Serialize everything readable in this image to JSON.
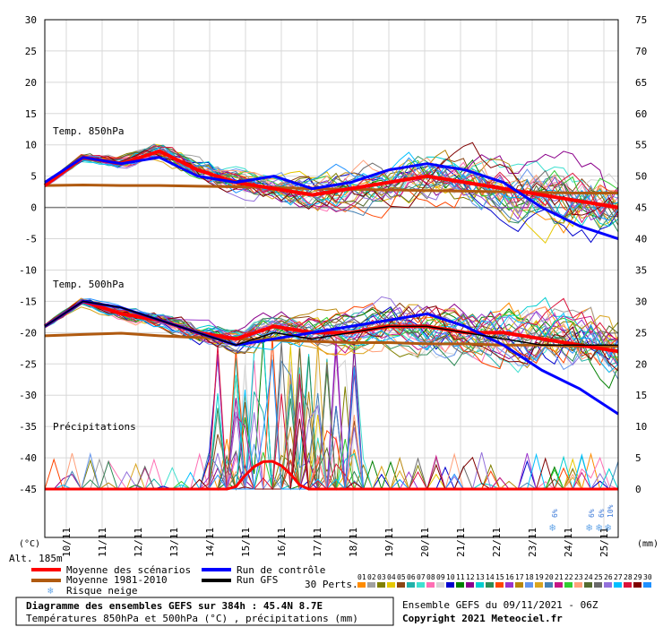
{
  "chart_data": {
    "type": "line",
    "title": "Diagramme des ensembles GEFS sur 384h : 45.4N 8.7E",
    "subtitle": "Températures 850hPa et 500hPa (°C) , précipitations (mm)",
    "left_axis": {
      "unit_label": "(°C)",
      "ticks": [
        "30",
        "25",
        "20",
        "15",
        "10",
        "5",
        "0",
        "-5",
        "-10",
        "-15",
        "-20",
        "-25",
        "-30",
        "-35",
        "-40",
        "-45"
      ]
    },
    "right_axis": {
      "unit_label": "(mm)",
      "ticks": [
        "75",
        "70",
        "65",
        "60",
        "55",
        "50",
        "45",
        "40",
        "35",
        "30",
        "25",
        "20",
        "15",
        "10",
        "5",
        "0"
      ]
    },
    "altitude_label": "Alt. 185m",
    "x_labels": [
      "10/11",
      "11/11",
      "12/11",
      "13/11",
      "14/11",
      "15/11",
      "16/11",
      "17/11",
      "18/11",
      "19/11",
      "20/11",
      "21/11",
      "22/11",
      "23/11",
      "24/11",
      "25/11"
    ],
    "sections": {
      "t850": "Temp. 850hPa",
      "t500": "Temp. 500hPa",
      "precip": "Précipitations"
    },
    "snow_risk_labels": [
      "6%",
      "6%",
      "6%",
      "10%"
    ],
    "legend": {
      "mean": "Moyenne des scénarios",
      "climo": "Moyenne 1981-2010",
      "snow": "Risque neige",
      "control": "Run de contrôle",
      "gfs": "Run GFS",
      "perts_label": "30 Perts."
    },
    "perts": [
      "01",
      "02",
      "03",
      "04",
      "05",
      "06",
      "07",
      "08",
      "09",
      "10",
      "11",
      "12",
      "13",
      "14",
      "15",
      "16",
      "17",
      "18",
      "19",
      "20",
      "21",
      "22",
      "23",
      "24",
      "25",
      "26",
      "27",
      "28",
      "29",
      "30"
    ],
    "pert_colors": [
      "#ff8c00",
      "#a0a0a0",
      "#808000",
      "#e6c800",
      "#8b4513",
      "#20b2aa",
      "#40e0d0",
      "#ff6eb4",
      "#d3d3d3",
      "#0000cd",
      "#008000",
      "#8b008b",
      "#00ced1",
      "#2e8b57",
      "#ff4500",
      "#9932cc",
      "#b8860b",
      "#6495ed",
      "#daa520",
      "#4682b4",
      "#c71585",
      "#32cd32",
      "#ffa07a",
      "#556b2f",
      "#696969",
      "#9370db",
      "#00bfff",
      "#dc143c",
      "#800000",
      "#1e90ff"
    ],
    "series": [
      {
        "name": "Moyenne 1981-2010",
        "level": "t850",
        "values": [
          3.5,
          3.6,
          3.5,
          3.5,
          3.4,
          3.3,
          3.2,
          3.0,
          2.9,
          2.8,
          2.7,
          2.6,
          2.5,
          2.4,
          2.3,
          2.3
        ]
      },
      {
        "name": "Moyenne des scénarios",
        "level": "t850",
        "values": [
          3.5,
          8,
          7,
          9,
          6,
          4,
          3,
          2,
          3,
          4,
          5,
          4,
          3,
          2,
          1,
          0
        ]
      },
      {
        "name": "Run de contrôle",
        "level": "t850",
        "values": [
          4,
          8,
          7,
          8,
          5,
          4,
          5,
          3,
          4,
          6,
          7,
          6,
          4,
          0,
          -3,
          -5
        ]
      },
      {
        "name": "Moyenne 1981-2010",
        "level": "t500",
        "values": [
          -20.5,
          -20.3,
          -20.1,
          -20.5,
          -20.8,
          -21,
          -21.2,
          -21.4,
          -21.6,
          -21.6,
          -21.8,
          -21.8,
          -22,
          -22,
          -22.2,
          -22.2
        ]
      },
      {
        "name": "Moyenne des scénarios",
        "level": "t500",
        "values": [
          -19,
          -15,
          -17,
          -18,
          -20,
          -21,
          -19,
          -20,
          -20,
          -19,
          -19,
          -20,
          -20,
          -21,
          -22,
          -23
        ]
      },
      {
        "name": "Run de contrôle",
        "level": "t500",
        "values": [
          -19,
          -15,
          -16,
          -18,
          -20,
          -22,
          -21,
          -20,
          -19,
          -18,
          -17,
          -19,
          -22,
          -26,
          -29,
          -33
        ]
      },
      {
        "name": "Run GFS",
        "level": "t500",
        "values": [
          -19,
          -15,
          -16,
          -18,
          -20,
          -22,
          -20,
          -21,
          -20,
          -19,
          -19,
          -20,
          -21,
          -22,
          -22,
          -22
        ]
      }
    ],
    "xlabel": "",
    "ylabel": "(°C)",
    "grid": true,
    "legend_placement": "bottom"
  },
  "footer": {
    "title": "Diagramme des ensembles GEFS sur 384h : 45.4N 8.7E",
    "subtitle": "Températures 850hPa et 500hPa (°C) , précipitations (mm)",
    "run": "Ensemble GEFS du 09/11/2021 - 06Z",
    "copyright": "Copyright 2021 Meteociel.fr"
  },
  "colors": {
    "mean": "#ff0000",
    "climo": "#b05a10",
    "control": "#0000ff",
    "gfs": "#000000",
    "grid": "#d8d8d8",
    "axis": "#000000"
  }
}
